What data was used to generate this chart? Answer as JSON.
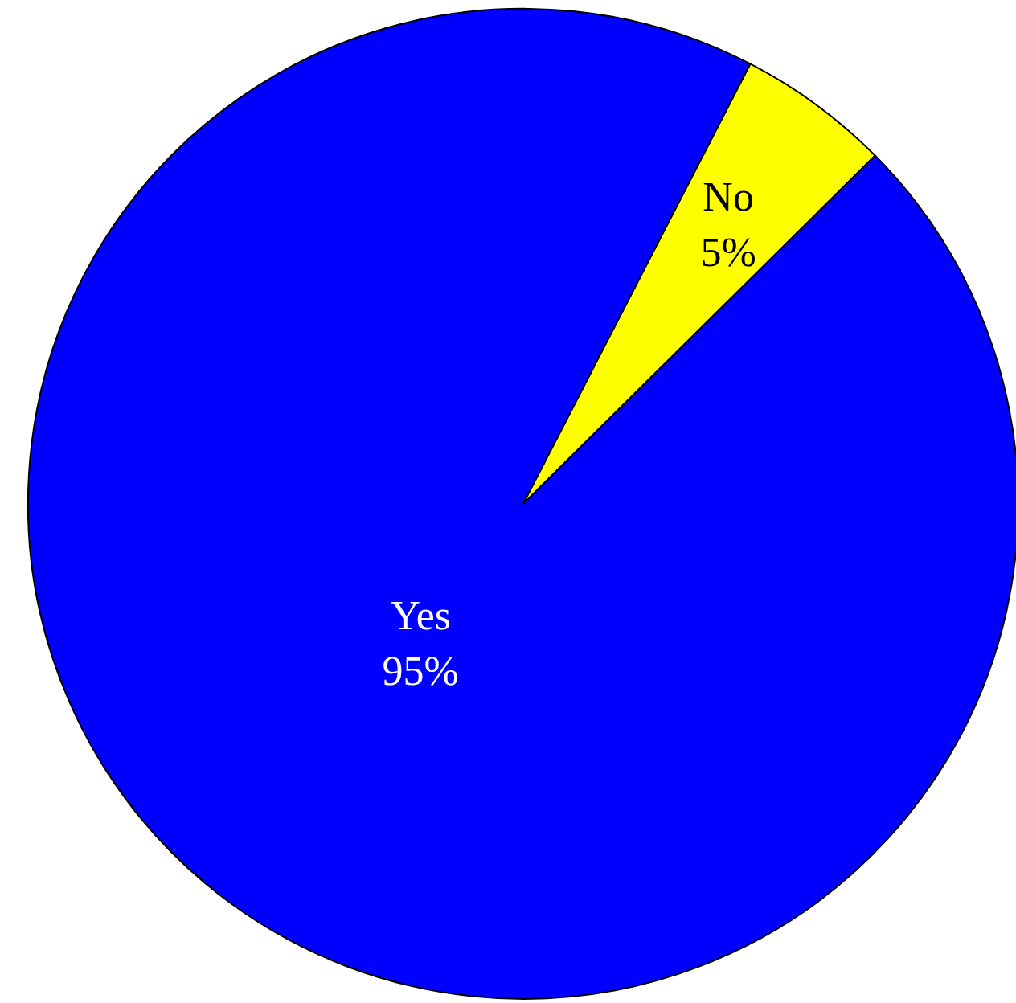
{
  "chart_data": {
    "type": "pie",
    "categories": [
      "No",
      "Yes"
    ],
    "values": [
      5,
      95
    ],
    "colors": [
      "#ffff00",
      "#0000ff"
    ],
    "value_labels": [
      "5%",
      "95%"
    ]
  }
}
